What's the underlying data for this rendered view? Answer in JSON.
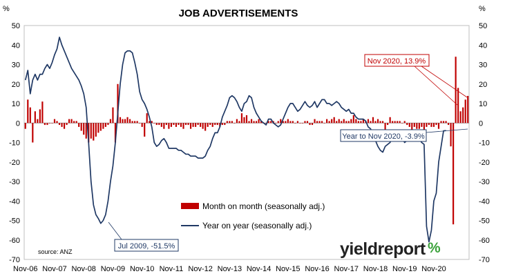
{
  "chart_data": {
    "type": "bar+line",
    "title": "JOB ADVERTISEMENTS",
    "left_axis_unit": "%",
    "right_axis_unit": "%",
    "ylim": [
      -70,
      50
    ],
    "y_ticks": [
      50,
      40,
      30,
      20,
      10,
      0,
      -10,
      -20,
      -30,
      -40,
      -50,
      -60,
      -70
    ],
    "x_tick_labels": [
      "Nov-06",
      "Nov-07",
      "Nov-08",
      "Nov-09",
      "Nov-10",
      "Nov-11",
      "Nov-12",
      "Nov-13",
      "Nov-14",
      "Nov-15",
      "Nov-16",
      "Nov-17",
      "Nov-18",
      "Nov-19",
      "Nov-20"
    ],
    "x_range": [
      "Nov-06",
      "Nov-20"
    ],
    "grid": false,
    "legend_position": "bottom-center",
    "series": [
      {
        "name": "Month on month (seasonally adj.)",
        "type": "bar",
        "color": "#c00000",
        "x_start": "Nov-06",
        "frequency": "monthly",
        "values": [
          -3,
          12,
          8,
          -10,
          6,
          2,
          7,
          11,
          -1,
          -1,
          0,
          0,
          2,
          1,
          -1,
          -2,
          -3,
          -1,
          2,
          2,
          1,
          1,
          -2,
          -4,
          -6,
          -8,
          -10,
          -8,
          -9,
          -7,
          -5,
          -4,
          -3,
          -2,
          -1,
          2,
          8,
          -10,
          20,
          3,
          2,
          2,
          3,
          2,
          1,
          1,
          1,
          0,
          -2,
          -7,
          5,
          1,
          1,
          0,
          -1,
          -1,
          -2,
          -3,
          -1,
          -3,
          -2,
          -1,
          -2,
          -1,
          -2,
          -3,
          -1,
          -1,
          -3,
          -2,
          -2,
          -1,
          -2,
          -3,
          -4,
          -2,
          -1,
          -2,
          -1,
          -1,
          -2,
          -1,
          -1,
          1,
          1,
          1,
          0,
          2,
          1,
          5,
          3,
          4,
          1,
          2,
          1,
          1,
          2,
          1,
          0,
          0,
          1,
          1,
          1,
          0,
          1,
          2,
          1,
          1,
          2,
          1,
          1,
          0,
          1,
          0,
          0,
          1,
          1,
          -1,
          -1,
          2,
          1,
          1,
          1,
          0,
          2,
          1,
          2,
          3,
          1,
          2,
          1,
          2,
          1,
          1,
          2,
          4,
          2,
          1,
          1,
          2,
          1,
          2,
          1,
          3,
          1,
          2,
          1,
          1,
          -4,
          -1,
          3,
          1,
          1,
          1,
          1,
          0,
          1,
          -1,
          -2,
          -4,
          -2,
          -3,
          -3,
          -2,
          -4,
          -2,
          -1,
          -2,
          -2,
          -1,
          -3,
          1,
          1,
          1,
          -1,
          -12,
          -52,
          34,
          18,
          6,
          8,
          12,
          13.9
        ],
        "annotations": [
          {
            "label": "Nov 2020, 13.9%",
            "x": "Nov-20",
            "y": 13.9
          }
        ]
      },
      {
        "name": "Year on year (seasonally adj.)",
        "type": "line",
        "color": "#1f3864",
        "x_start": "Nov-06",
        "frequency": "monthly",
        "values": [
          22,
          27,
          15,
          22,
          25,
          22,
          25,
          25,
          28,
          30,
          28,
          31,
          35,
          38,
          44,
          40,
          37,
          34,
          31,
          28,
          26,
          24,
          22,
          19,
          15,
          8,
          -10,
          -30,
          -42,
          -47,
          -49,
          -51.5,
          -50,
          -47,
          -40,
          -30,
          -22,
          -10,
          5,
          20,
          30,
          36,
          37,
          37,
          36,
          31,
          25,
          16,
          12,
          10,
          7,
          3,
          -2,
          -10,
          -12,
          -11,
          -9,
          -8,
          -10,
          -13,
          -13,
          -13,
          -13,
          -14,
          -14,
          -15,
          -16,
          -16,
          -17,
          -17,
          -17,
          -18,
          -18,
          -18,
          -17,
          -14,
          -12,
          -8,
          -5,
          -5,
          -2,
          3,
          6,
          9,
          13,
          14,
          13,
          11,
          8,
          6,
          10,
          11,
          14,
          13,
          8,
          5,
          3,
          1,
          0,
          -1,
          2,
          2,
          0,
          -1,
          -2,
          -1,
          2,
          5,
          8,
          10,
          10,
          8,
          6,
          7,
          9,
          11,
          9,
          8,
          9,
          11,
          8,
          10,
          12,
          12,
          10,
          10,
          9,
          10,
          11,
          10,
          8,
          7,
          6,
          7,
          5,
          5,
          3,
          2,
          2,
          2,
          1,
          -2,
          -3,
          -7,
          -9,
          -12,
          -14,
          -15,
          -12,
          -11,
          -10,
          -7,
          -5,
          -5,
          -6,
          -8,
          -10,
          -9,
          -8,
          -9,
          -8,
          -8,
          -8,
          -10,
          -11,
          -53,
          -61,
          -55,
          -40,
          -36,
          -20,
          -12,
          -4,
          -3.9
        ],
        "annotations": [
          {
            "label": "Jul 2009, -51.5%",
            "x": "Jul-09",
            "y": -51.5
          },
          {
            "label": "Year to Nov 2020, -3.9%",
            "x": "Nov-20",
            "y": -3.9
          }
        ]
      }
    ],
    "source": "source: ANZ"
  },
  "brand": {
    "text": "yieldreport",
    "symbol": "%",
    "accent": "#3aa13a"
  }
}
